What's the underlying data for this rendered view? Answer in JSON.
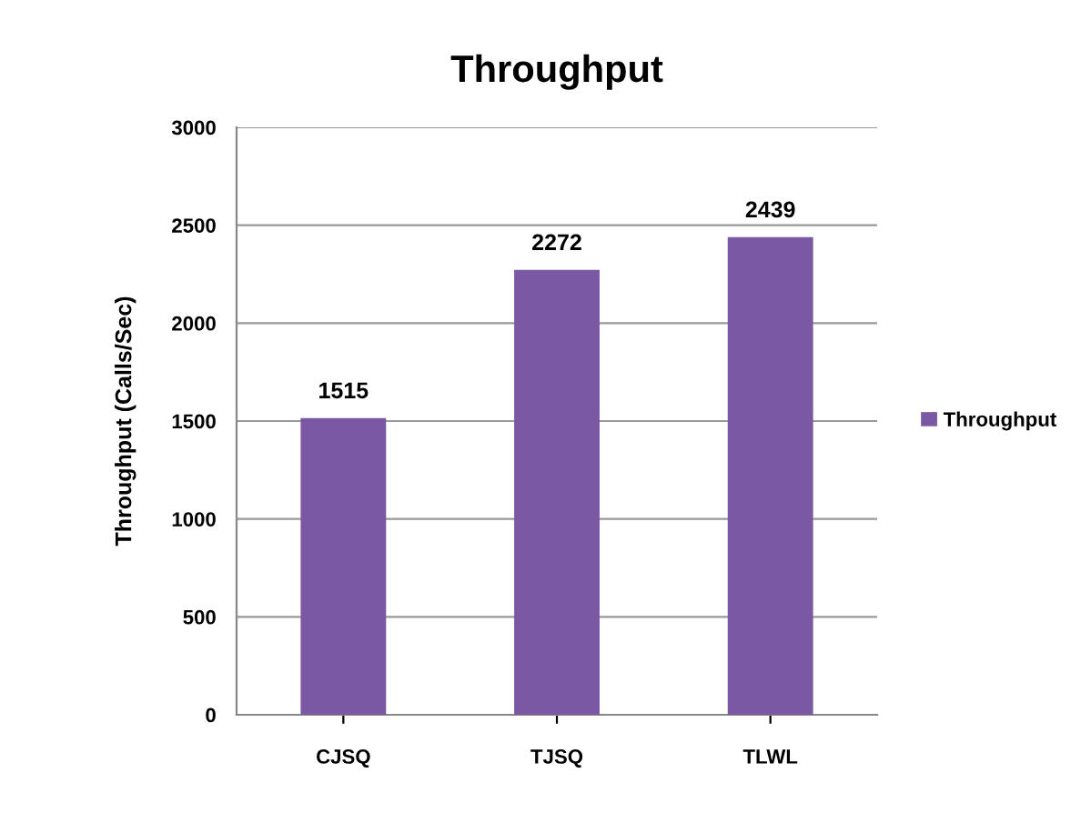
{
  "chart_data": {
    "type": "bar",
    "title": "Throughput",
    "ylabel": "Throughput (Calls/Sec)",
    "categories": [
      "CJSQ",
      "TJSQ",
      "TLWL"
    ],
    "series": [
      {
        "name": "Throughput",
        "color": "#7b58a3",
        "values": [
          1515,
          2272,
          2439
        ]
      }
    ],
    "ylim": [
      0,
      3000
    ],
    "yticks": [
      0,
      500,
      1000,
      1500,
      2000,
      2500,
      3000
    ],
    "grid": "y",
    "legend": "right",
    "data_labels": true
  }
}
